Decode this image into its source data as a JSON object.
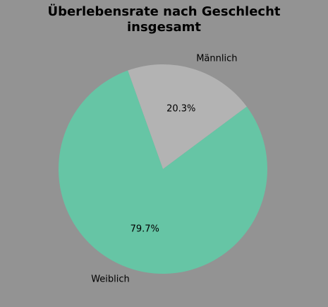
{
  "title": {
    "line1": "Überlebensrate nach Geschlecht",
    "line2": "insgesamt"
  },
  "chart_data": {
    "type": "pie",
    "title": "Überlebensrate nach Geschlecht insgesamt",
    "categories": [
      "Männlich",
      "Weiblich"
    ],
    "values": [
      20.3,
      79.7
    ],
    "percent_labels": [
      "20.3%",
      "79.7%"
    ],
    "colors": [
      "#b3b3b3",
      "#66c5a5"
    ],
    "background": "#939393",
    "legend": "none"
  }
}
